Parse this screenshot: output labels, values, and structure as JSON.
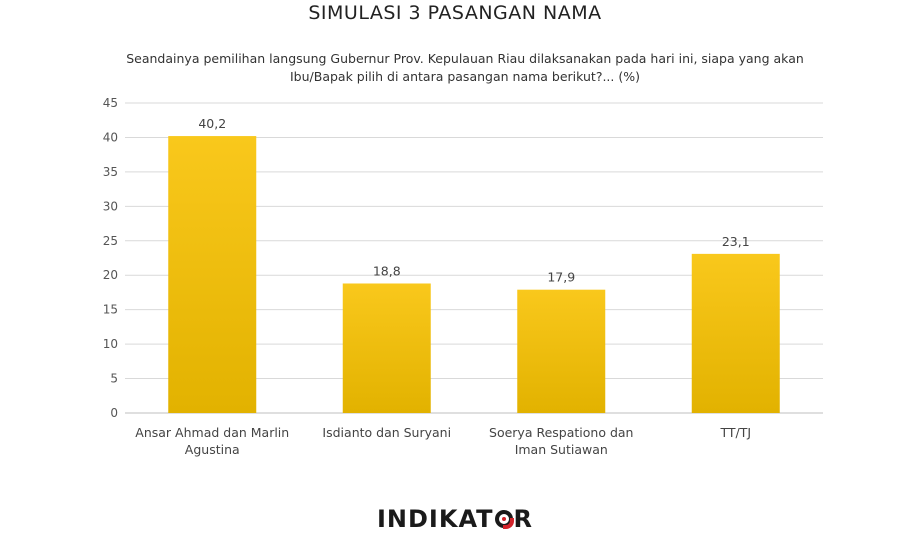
{
  "chart_data": {
    "type": "bar",
    "title": "SIMULASI 3 PASANGAN NAMA",
    "subtitle_lines": [
      "Seandainya pemilihan langsung Gubernur Prov. Kepulauan Riau dilaksanakan pada hari ini, siapa yang akan",
      "Ibu/Bapak pilih di antara pasangan nama berikut?... (%)"
    ],
    "categories": [
      [
        "Ansar Ahmad dan Marlin",
        "Agustina"
      ],
      [
        "Isdianto dan Suryani"
      ],
      [
        "Soerya Respationo dan",
        "Iman Sutiawan"
      ],
      [
        "TT/TJ"
      ]
    ],
    "values": [
      40.2,
      18.8,
      17.9,
      23.1
    ],
    "value_labels": [
      "40,2",
      "18,8",
      "17,9",
      "23,1"
    ],
    "ylim": [
      0,
      45
    ],
    "yticks": [
      0,
      5,
      10,
      15,
      20,
      25,
      30,
      35,
      40,
      45
    ],
    "grid": true,
    "bar_color_top": "#f9c81c",
    "bar_color_bottom": "#e2b200"
  },
  "brand": {
    "logo_before": "INDIKAT",
    "logo_after": "R"
  }
}
